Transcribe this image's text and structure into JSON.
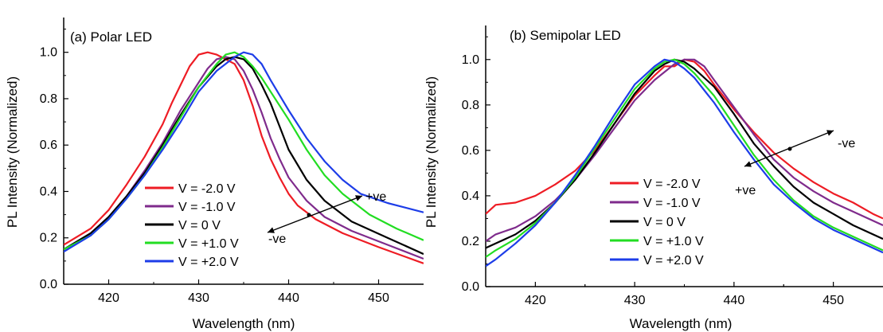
{
  "chart_data": [
    {
      "type": "line",
      "title": "(a) Polar LED",
      "xlabel": "Wavelength (nm)",
      "ylabel": "PL Intensity (Normalized)",
      "xlim": [
        415,
        455
      ],
      "ylim": [
        0,
        1.15
      ],
      "xticks": [
        "420",
        "430",
        "440",
        "450"
      ],
      "yticks": [
        "0.0",
        "0.2",
        "0.4",
        "0.6",
        "0.8",
        "1.0"
      ],
      "legend_position": "lower-center",
      "annotations": [
        "+ve",
        "-ve"
      ],
      "series": [
        {
          "name": "V = -2.0 V",
          "color": "#ee1c24",
          "points": [
            [
              415,
              0.17
            ],
            [
              418,
              0.24
            ],
            [
              420,
              0.32
            ],
            [
              422,
              0.43
            ],
            [
              424,
              0.55
            ],
            [
              426,
              0.69
            ],
            [
              427,
              0.78
            ],
            [
              428,
              0.86
            ],
            [
              429,
              0.94
            ],
            [
              430,
              0.99
            ],
            [
              431,
              1.0
            ],
            [
              432,
              0.99
            ],
            [
              433,
              0.97
            ],
            [
              434,
              0.95
            ],
            [
              435,
              0.88
            ],
            [
              436,
              0.77
            ],
            [
              437,
              0.64
            ],
            [
              438,
              0.54
            ],
            [
              439,
              0.46
            ],
            [
              440,
              0.39
            ],
            [
              441,
              0.34
            ],
            [
              443,
              0.28
            ],
            [
              446,
              0.22
            ],
            [
              450,
              0.16
            ],
            [
              455,
              0.09
            ]
          ]
        },
        {
          "name": "V = -1.0 V",
          "color": "#7f2b8c",
          "points": [
            [
              415,
              0.15
            ],
            [
              418,
              0.22
            ],
            [
              420,
              0.29
            ],
            [
              422,
              0.38
            ],
            [
              424,
              0.49
            ],
            [
              426,
              0.61
            ],
            [
              428,
              0.75
            ],
            [
              430,
              0.87
            ],
            [
              431,
              0.93
            ],
            [
              432,
              0.97
            ],
            [
              433,
              0.98
            ],
            [
              434,
              0.97
            ],
            [
              435,
              0.92
            ],
            [
              436,
              0.84
            ],
            [
              437,
              0.74
            ],
            [
              438,
              0.63
            ],
            [
              439,
              0.54
            ],
            [
              440,
              0.46
            ],
            [
              442,
              0.36
            ],
            [
              444,
              0.29
            ],
            [
              447,
              0.23
            ],
            [
              451,
              0.17
            ],
            [
              455,
              0.11
            ]
          ]
        },
        {
          "name": "V = 0 V",
          "color": "#000000",
          "points": [
            [
              415,
              0.15
            ],
            [
              418,
              0.22
            ],
            [
              420,
              0.29
            ],
            [
              422,
              0.38
            ],
            [
              424,
              0.48
            ],
            [
              426,
              0.6
            ],
            [
              428,
              0.73
            ],
            [
              430,
              0.85
            ],
            [
              432,
              0.94
            ],
            [
              433,
              0.97
            ],
            [
              434,
              0.98
            ],
            [
              435,
              0.97
            ],
            [
              436,
              0.93
            ],
            [
              437,
              0.86
            ],
            [
              438,
              0.78
            ],
            [
              439,
              0.68
            ],
            [
              440,
              0.58
            ],
            [
              442,
              0.45
            ],
            [
              444,
              0.36
            ],
            [
              447,
              0.27
            ],
            [
              451,
              0.2
            ],
            [
              455,
              0.13
            ]
          ]
        },
        {
          "name": "V = +1.0 V",
          "color": "#22dd22",
          "points": [
            [
              415,
              0.15
            ],
            [
              418,
              0.21
            ],
            [
              420,
              0.28
            ],
            [
              422,
              0.37
            ],
            [
              424,
              0.47
            ],
            [
              426,
              0.59
            ],
            [
              428,
              0.72
            ],
            [
              430,
              0.85
            ],
            [
              432,
              0.95
            ],
            [
              433,
              0.99
            ],
            [
              434,
              1.0
            ],
            [
              435,
              0.98
            ],
            [
              436,
              0.94
            ],
            [
              437,
              0.89
            ],
            [
              438,
              0.83
            ],
            [
              440,
              0.71
            ],
            [
              442,
              0.58
            ],
            [
              444,
              0.47
            ],
            [
              446,
              0.39
            ],
            [
              449,
              0.3
            ],
            [
              452,
              0.24
            ],
            [
              455,
              0.19
            ]
          ]
        },
        {
          "name": "V = +2.0 V",
          "color": "#1d3de8",
          "points": [
            [
              415,
              0.14
            ],
            [
              418,
              0.21
            ],
            [
              420,
              0.28
            ],
            [
              422,
              0.37
            ],
            [
              424,
              0.47
            ],
            [
              426,
              0.58
            ],
            [
              428,
              0.7
            ],
            [
              430,
              0.83
            ],
            [
              432,
              0.92
            ],
            [
              434,
              0.98
            ],
            [
              435,
              1.0
            ],
            [
              436,
              0.99
            ],
            [
              437,
              0.95
            ],
            [
              438,
              0.88
            ],
            [
              440,
              0.75
            ],
            [
              442,
              0.63
            ],
            [
              444,
              0.53
            ],
            [
              446,
              0.45
            ],
            [
              448,
              0.39
            ],
            [
              451,
              0.35
            ],
            [
              455,
              0.31
            ]
          ]
        }
      ]
    },
    {
      "type": "line",
      "title": "(b) Semipolar LED",
      "xlabel": "Wavelength (nm)",
      "ylabel": "PL Intensity (Normalized)",
      "xlim": [
        415,
        455
      ],
      "ylim": [
        0,
        1.15
      ],
      "xticks": [
        "420",
        "430",
        "440",
        "450"
      ],
      "yticks": [
        "0.0",
        "0.2",
        "0.4",
        "0.6",
        "0.8",
        "1.0"
      ],
      "legend_position": "lower-center",
      "annotations": [
        "-ve",
        "+ve"
      ],
      "series": [
        {
          "name": "V = -2.0 V",
          "color": "#ee1c24",
          "points": [
            [
              415,
              0.32
            ],
            [
              416,
              0.36
            ],
            [
              418,
              0.37
            ],
            [
              420,
              0.4
            ],
            [
              422,
              0.45
            ],
            [
              424,
              0.51
            ],
            [
              426,
              0.6
            ],
            [
              428,
              0.72
            ],
            [
              430,
              0.84
            ],
            [
              432,
              0.93
            ],
            [
              433,
              0.97
            ],
            [
              434,
              0.97
            ],
            [
              435,
              1.0
            ],
            [
              436,
              0.99
            ],
            [
              437,
              0.95
            ],
            [
              438,
              0.89
            ],
            [
              440,
              0.78
            ],
            [
              442,
              0.68
            ],
            [
              444,
              0.59
            ],
            [
              446,
              0.52
            ],
            [
              448,
              0.46
            ],
            [
              450,
              0.41
            ],
            [
              452,
              0.37
            ],
            [
              454,
              0.32
            ],
            [
              455,
              0.3
            ]
          ]
        },
        {
          "name": "V = -1.0 V",
          "color": "#7f2b8c",
          "points": [
            [
              415,
              0.2
            ],
            [
              416,
              0.23
            ],
            [
              418,
              0.26
            ],
            [
              420,
              0.31
            ],
            [
              422,
              0.38
            ],
            [
              424,
              0.47
            ],
            [
              426,
              0.58
            ],
            [
              428,
              0.7
            ],
            [
              430,
              0.82
            ],
            [
              432,
              0.91
            ],
            [
              434,
              0.98
            ],
            [
              435,
              1.0
            ],
            [
              436,
              1.0
            ],
            [
              437,
              0.97
            ],
            [
              438,
              0.91
            ],
            [
              440,
              0.79
            ],
            [
              442,
              0.67
            ],
            [
              444,
              0.56
            ],
            [
              446,
              0.48
            ],
            [
              448,
              0.42
            ],
            [
              450,
              0.37
            ],
            [
              452,
              0.33
            ],
            [
              455,
              0.27
            ]
          ]
        },
        {
          "name": "V = 0 V",
          "color": "#000000",
          "points": [
            [
              415,
              0.17
            ],
            [
              416,
              0.19
            ],
            [
              418,
              0.23
            ],
            [
              420,
              0.29
            ],
            [
              422,
              0.37
            ],
            [
              424,
              0.47
            ],
            [
              426,
              0.59
            ],
            [
              428,
              0.72
            ],
            [
              430,
              0.85
            ],
            [
              432,
              0.95
            ],
            [
              433,
              0.98
            ],
            [
              434,
              1.0
            ],
            [
              435,
              0.99
            ],
            [
              436,
              0.96
            ],
            [
              438,
              0.88
            ],
            [
              440,
              0.76
            ],
            [
              442,
              0.63
            ],
            [
              444,
              0.53
            ],
            [
              446,
              0.44
            ],
            [
              448,
              0.37
            ],
            [
              450,
              0.32
            ],
            [
              452,
              0.27
            ],
            [
              455,
              0.21
            ]
          ]
        },
        {
          "name": "V = +1.0 V",
          "color": "#22dd22",
          "points": [
            [
              415,
              0.13
            ],
            [
              416,
              0.16
            ],
            [
              418,
              0.21
            ],
            [
              420,
              0.28
            ],
            [
              422,
              0.37
            ],
            [
              424,
              0.48
            ],
            [
              426,
              0.61
            ],
            [
              428,
              0.74
            ],
            [
              430,
              0.87
            ],
            [
              432,
              0.96
            ],
            [
              433,
              0.99
            ],
            [
              434,
              1.0
            ],
            [
              435,
              0.98
            ],
            [
              436,
              0.94
            ],
            [
              438,
              0.84
            ],
            [
              440,
              0.71
            ],
            [
              442,
              0.58
            ],
            [
              444,
              0.47
            ],
            [
              446,
              0.38
            ],
            [
              448,
              0.31
            ],
            [
              450,
              0.26
            ],
            [
              452,
              0.22
            ],
            [
              455,
              0.16
            ]
          ]
        },
        {
          "name": "V = +2.0 V",
          "color": "#1d3de8",
          "points": [
            [
              415,
              0.09
            ],
            [
              416,
              0.12
            ],
            [
              418,
              0.19
            ],
            [
              420,
              0.27
            ],
            [
              422,
              0.37
            ],
            [
              424,
              0.49
            ],
            [
              426,
              0.62
            ],
            [
              428,
              0.76
            ],
            [
              430,
              0.89
            ],
            [
              432,
              0.97
            ],
            [
              433,
              1.0
            ],
            [
              434,
              0.99
            ],
            [
              435,
              0.96
            ],
            [
              436,
              0.92
            ],
            [
              438,
              0.81
            ],
            [
              440,
              0.68
            ],
            [
              442,
              0.56
            ],
            [
              444,
              0.45
            ],
            [
              446,
              0.37
            ],
            [
              448,
              0.3
            ],
            [
              450,
              0.25
            ],
            [
              452,
              0.21
            ],
            [
              455,
              0.15
            ]
          ]
        }
      ]
    }
  ]
}
